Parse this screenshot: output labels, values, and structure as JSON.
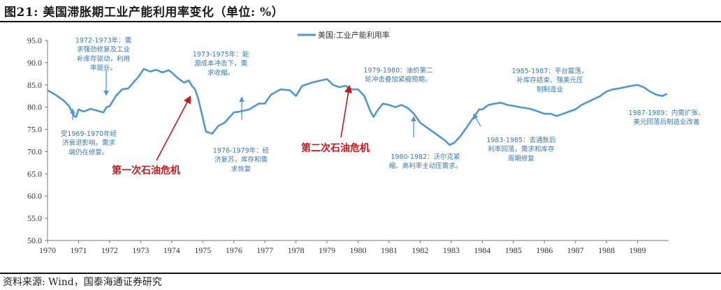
{
  "header": {
    "title": "图21:  美国滞胀期工业产能利用率变化（单位:  %）"
  },
  "footer": {
    "source": "资料来源:  Wind，国泰海通证券研究"
  },
  "chart_data": {
    "type": "line",
    "title": "",
    "xlabel": "",
    "ylabel": "",
    "ylim": [
      50,
      95
    ],
    "xlim": [
      1970,
      1990
    ],
    "grid": false,
    "legend": "top-center",
    "line_color": "#4f97cf",
    "y_ticks": [
      "50.0",
      "55.0",
      "60.0",
      "65.0",
      "70.0",
      "75.0",
      "80.0",
      "85.0",
      "90.0",
      "95.0"
    ],
    "x_ticks": [
      "1970",
      "1971",
      "1972",
      "1973",
      "1974",
      "1975",
      "1976",
      "1977",
      "1978",
      "1979",
      "1980",
      "1981",
      "1982",
      "1983",
      "1984",
      "1985",
      "1986",
      "1987",
      "1988",
      "1989"
    ],
    "series": [
      {
        "name": "美国:工业产能利用率",
        "x": [
          1970.0,
          1970.25,
          1970.5,
          1970.7,
          1970.85,
          1970.92,
          1971.0,
          1971.15,
          1971.4,
          1971.6,
          1971.8,
          1971.9,
          1972.0,
          1972.2,
          1972.4,
          1972.6,
          1972.8,
          1972.95,
          1973.1,
          1973.3,
          1973.5,
          1973.7,
          1973.9,
          1974.0,
          1974.2,
          1974.4,
          1974.55,
          1974.65,
          1974.75,
          1974.85,
          1975.0,
          1975.1,
          1975.3,
          1975.5,
          1975.7,
          1976.0,
          1976.2,
          1976.5,
          1976.8,
          1977.0,
          1977.2,
          1977.5,
          1977.8,
          1978.0,
          1978.2,
          1978.5,
          1978.8,
          1979.0,
          1979.2,
          1979.4,
          1979.6,
          1979.8,
          1980.0,
          1980.2,
          1980.4,
          1980.5,
          1980.6,
          1980.8,
          1981.0,
          1981.2,
          1981.4,
          1981.6,
          1981.8,
          1982.0,
          1982.2,
          1982.4,
          1982.6,
          1982.8,
          1982.95,
          1983.1,
          1983.3,
          1983.5,
          1983.7,
          1983.9,
          1984.0,
          1984.2,
          1984.4,
          1984.6,
          1984.8,
          1985.0,
          1985.2,
          1985.4,
          1985.6,
          1985.8,
          1986.0,
          1986.2,
          1986.4,
          1986.6,
          1986.8,
          1987.0,
          1987.2,
          1987.5,
          1987.8,
          1988.0,
          1988.2,
          1988.4,
          1988.6,
          1988.8,
          1989.0,
          1989.2,
          1989.4,
          1989.6,
          1989.8,
          1989.95
        ],
        "y": [
          83.8,
          82.8,
          81.6,
          80.2,
          78.0,
          77.8,
          79.5,
          79.0,
          79.6,
          79.2,
          78.8,
          80.0,
          80.2,
          82.5,
          84.0,
          84.2,
          85.8,
          87.0,
          88.6,
          88.0,
          88.4,
          87.8,
          88.3,
          87.8,
          86.5,
          85.5,
          86.0,
          84.8,
          84.0,
          82.0,
          77.5,
          74.5,
          74.0,
          75.8,
          76.5,
          78.8,
          79.0,
          79.5,
          80.8,
          80.8,
          82.8,
          84.0,
          83.8,
          82.5,
          84.8,
          85.5,
          86.0,
          86.3,
          85.0,
          84.5,
          84.8,
          84.0,
          84.0,
          82.5,
          79.0,
          77.8,
          79.0,
          80.8,
          80.5,
          80.0,
          80.5,
          79.8,
          78.5,
          76.5,
          75.5,
          74.5,
          73.5,
          72.5,
          71.5,
          72.0,
          73.5,
          75.5,
          77.5,
          79.5,
          79.5,
          80.5,
          80.8,
          81.0,
          80.5,
          80.3,
          80.0,
          79.8,
          79.5,
          79.0,
          78.5,
          78.5,
          78.0,
          78.5,
          79.0,
          79.5,
          80.5,
          81.5,
          82.5,
          83.5,
          84.0,
          84.2,
          84.5,
          84.8,
          85.0,
          84.5,
          83.5,
          82.8,
          82.5,
          83.0
        ]
      }
    ],
    "annotations": [
      {
        "lines": [
          "1972-1973年：需",
          "求强劲修复及工业",
          "补库存驱动，利用",
          "率提升。"
        ]
      },
      {
        "lines": [
          "1973-1975年：能",
          "源成本冲击下，需",
          "求收缩。"
        ]
      },
      {
        "lines": [
          "1979-1980：油价第二",
          "轮冲击叠加紧缩预期。"
        ]
      },
      {
        "lines": [
          "1985-1987：平台震荡，",
          "补库存结束、强美元压",
          "制制造业"
        ]
      },
      {
        "lines": [
          "1987-1989：内需扩张、",
          "美元回落后制造业改善"
        ]
      },
      {
        "lines": [
          "受1969-1970年经",
          "济衰退影响，需求",
          "端仍在修复。"
        ]
      },
      {
        "lines": [
          "1976-1979年：经",
          "济复苏，库存和需",
          "求恢复"
        ]
      },
      {
        "lines": [
          "1980-1982：沃尔克紧",
          "缩、高利率主动压需求。"
        ]
      },
      {
        "lines": [
          "1983-1985：去通胀后",
          "利率回落，需求和库存",
          "周期修复"
        ]
      }
    ],
    "events": [
      {
        "label": "第一次石油危机"
      },
      {
        "label": "第二次石油危机"
      }
    ]
  }
}
